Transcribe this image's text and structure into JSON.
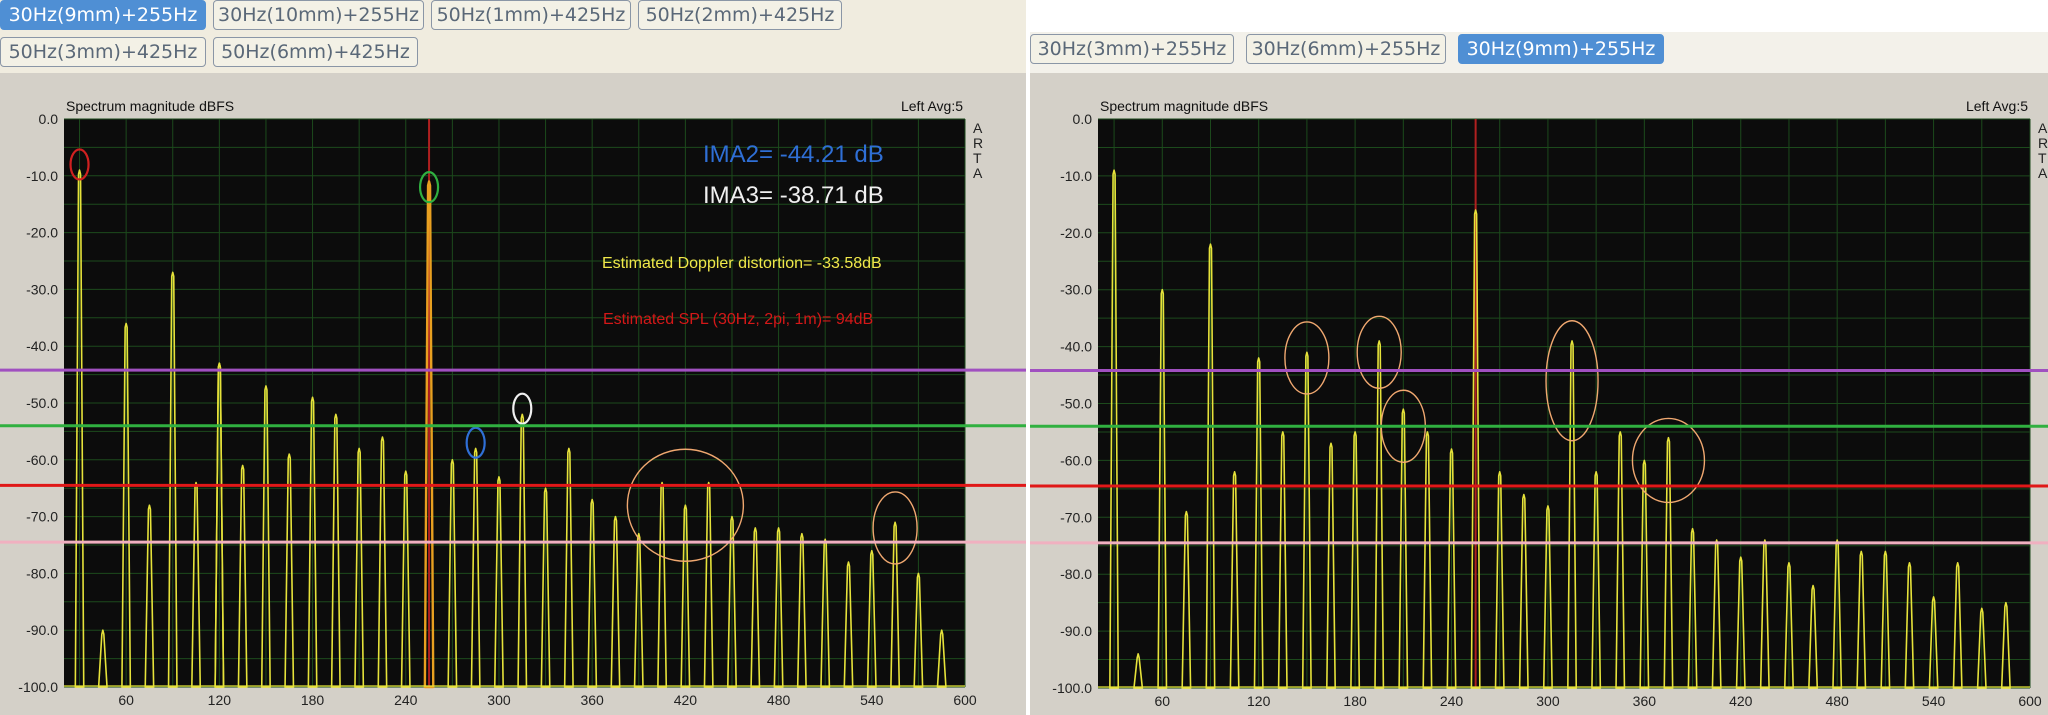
{
  "left": {
    "tabs": [
      {
        "label": "30Hz(9mm)+255Hz",
        "active": true
      },
      {
        "label": "30Hz(10mm)+255Hz",
        "active": false
      },
      {
        "label": "50Hz(1mm)+425Hz",
        "active": false
      },
      {
        "label": "50Hz(2mm)+425Hz",
        "active": false
      },
      {
        "label": "50Hz(3mm)+425Hz",
        "active": false
      },
      {
        "label": "50Hz(6mm)+425Hz",
        "active": false
      }
    ]
  },
  "right": {
    "tabs": [
      {
        "label": "30Hz(3mm)+255Hz",
        "active": false
      },
      {
        "label": "30Hz(6mm)+255Hz",
        "active": false
      },
      {
        "label": "30Hz(9mm)+255Hz",
        "active": true
      }
    ]
  },
  "colors": {
    "plot_bg": "#0c0c0c",
    "grid": "#1c4a1c",
    "trace": "#e6e23a",
    "fundamental": "#e8a020",
    "marker": "#b02020",
    "ima2": "#2f6fd6",
    "ima3": "#f0f0f0",
    "doppler": "#f0e84a",
    "spl": "#d41818",
    "h_purple": "#a050c0",
    "h_green": "#30b040",
    "h_red": "#e01818",
    "h_pink": "#f0b0c0"
  },
  "chart_data": [
    {
      "type": "line",
      "title": "Spectrum magnitude dBFS",
      "channel_label": "Left  Avg:5",
      "watermark": [
        "A",
        "R",
        "T",
        "A"
      ],
      "xlabel": "",
      "ylabel": "",
      "xlim": [
        20,
        600
      ],
      "ylim": [
        -100,
        0
      ],
      "xticks": [
        60,
        120,
        180,
        240,
        300,
        360,
        420,
        480,
        540,
        600
      ],
      "yticks": [
        "0.0",
        "-10.0",
        "-20.0",
        "-30.0",
        "-40.0",
        "-50.0",
        "-60.0",
        "-70.0",
        "-80.0",
        "-90.0",
        "-100.0"
      ],
      "grid": true,
      "marker_line_x": 255,
      "fundamental_index": 6,
      "peaks": [
        {
          "x": 30,
          "y": -9
        },
        {
          "x": 60,
          "y": -36
        },
        {
          "x": 90,
          "y": -27
        },
        {
          "x": 120,
          "y": -43
        },
        {
          "x": 150,
          "y": -47
        },
        {
          "x": 180,
          "y": -49
        },
        {
          "x": 255,
          "y": -11
        },
        {
          "x": 285,
          "y": -58
        },
        {
          "x": 315,
          "y": -52
        },
        {
          "x": 210,
          "y": -58
        },
        {
          "x": 225,
          "y": -56
        },
        {
          "x": 195,
          "y": -52
        },
        {
          "x": 165,
          "y": -59
        },
        {
          "x": 135,
          "y": -61
        },
        {
          "x": 105,
          "y": -64
        },
        {
          "x": 75,
          "y": -68
        },
        {
          "x": 240,
          "y": -62
        },
        {
          "x": 270,
          "y": -60
        },
        {
          "x": 300,
          "y": -63
        },
        {
          "x": 330,
          "y": -65
        },
        {
          "x": 345,
          "y": -58
        },
        {
          "x": 360,
          "y": -67
        },
        {
          "x": 375,
          "y": -70
        },
        {
          "x": 390,
          "y": -73
        },
        {
          "x": 405,
          "y": -64
        },
        {
          "x": 420,
          "y": -68
        },
        {
          "x": 435,
          "y": -64
        },
        {
          "x": 450,
          "y": -70
        },
        {
          "x": 465,
          "y": -72
        },
        {
          "x": 480,
          "y": -72
        },
        {
          "x": 495,
          "y": -73
        },
        {
          "x": 510,
          "y": -74
        },
        {
          "x": 525,
          "y": -78
        },
        {
          "x": 540,
          "y": -76
        },
        {
          "x": 555,
          "y": -71
        },
        {
          "x": 570,
          "y": -80
        },
        {
          "x": 585,
          "y": -90
        },
        {
          "x": 45,
          "y": -90
        },
        {
          "x": 120,
          "y": -43
        }
      ],
      "annotations": [
        {
          "text": "IMA2= -44.21 dB",
          "role": "ima2"
        },
        {
          "text": "IMA3= -38.71 dB",
          "role": "ima3"
        },
        {
          "text": "Estimated Doppler distortion= -33.58dB",
          "role": "doppler"
        },
        {
          "text": "Estimated SPL (30Hz, 2pi, 1m)= 94dB",
          "role": "spl"
        }
      ],
      "marks": [
        {
          "x": 30,
          "y": -8,
          "color": "#d02020"
        },
        {
          "x": 255,
          "y": -12,
          "color": "#30b040"
        },
        {
          "x": 285,
          "y": -57,
          "color": "#2f6fd6"
        },
        {
          "x": 315,
          "y": -51,
          "color": "#f0f0f0"
        }
      ],
      "highlight_regions": [
        {
          "x": 420,
          "y": -68
        },
        {
          "x": 555,
          "y": -72
        }
      ],
      "h_lines": [
        {
          "y": -44.21,
          "color": "#a050c0"
        },
        {
          "y": -54,
          "color": "#30b040"
        },
        {
          "y": -64.5,
          "color": "#e01818"
        },
        {
          "y": -74.5,
          "color": "#f0b0c0"
        }
      ]
    },
    {
      "type": "line",
      "title": "Spectrum magnitude dBFS",
      "channel_label": "Left  Avg:5",
      "watermark": [
        "A",
        "R",
        "T",
        "A"
      ],
      "xlabel": "",
      "ylabel": "",
      "xlim": [
        20,
        600
      ],
      "ylim": [
        -100,
        0
      ],
      "xticks": [
        60,
        120,
        180,
        240,
        300,
        360,
        420,
        480,
        540,
        600
      ],
      "yticks": [
        "0.0",
        "-10.0",
        "-20.0",
        "-30.0",
        "-40.0",
        "-50.0",
        "-60.0",
        "-70.0",
        "-80.0",
        "-90.0",
        "-100.0"
      ],
      "grid": true,
      "marker_line_x": 255,
      "peaks": [
        {
          "x": 30,
          "y": -9
        },
        {
          "x": 60,
          "y": -30
        },
        {
          "x": 90,
          "y": -22
        },
        {
          "x": 120,
          "y": -42
        },
        {
          "x": 150,
          "y": -41
        },
        {
          "x": 195,
          "y": -39
        },
        {
          "x": 255,
          "y": -16
        },
        {
          "x": 315,
          "y": -39
        },
        {
          "x": 375,
          "y": -56
        },
        {
          "x": 210,
          "y": -51
        },
        {
          "x": 225,
          "y": -55
        },
        {
          "x": 180,
          "y": -55
        },
        {
          "x": 165,
          "y": -57
        },
        {
          "x": 135,
          "y": -55
        },
        {
          "x": 105,
          "y": -62
        },
        {
          "x": 75,
          "y": -69
        },
        {
          "x": 240,
          "y": -58
        },
        {
          "x": 270,
          "y": -62
        },
        {
          "x": 285,
          "y": -66
        },
        {
          "x": 300,
          "y": -68
        },
        {
          "x": 330,
          "y": -62
        },
        {
          "x": 345,
          "y": -55
        },
        {
          "x": 360,
          "y": -60
        },
        {
          "x": 390,
          "y": -72
        },
        {
          "x": 405,
          "y": -74
        },
        {
          "x": 420,
          "y": -77
        },
        {
          "x": 435,
          "y": -74
        },
        {
          "x": 450,
          "y": -78
        },
        {
          "x": 465,
          "y": -82
        },
        {
          "x": 480,
          "y": -74
        },
        {
          "x": 495,
          "y": -76
        },
        {
          "x": 510,
          "y": -76
        },
        {
          "x": 525,
          "y": -78
        },
        {
          "x": 540,
          "y": -84
        },
        {
          "x": 555,
          "y": -78
        },
        {
          "x": 570,
          "y": -86
        },
        {
          "x": 585,
          "y": -85
        },
        {
          "x": 45,
          "y": -94
        }
      ],
      "highlight_regions": [
        {
          "x": 150,
          "y": -42
        },
        {
          "x": 195,
          "y": -41
        },
        {
          "x": 210,
          "y": -54
        },
        {
          "x": 315,
          "y": -46
        },
        {
          "x": 375,
          "y": -60
        }
      ],
      "h_lines": [
        {
          "y": -44.21,
          "color": "#a050c0"
        },
        {
          "y": -54,
          "color": "#30b040"
        },
        {
          "y": -64.5,
          "color": "#e01818"
        },
        {
          "y": -74.5,
          "color": "#f0b0c0"
        }
      ]
    }
  ]
}
